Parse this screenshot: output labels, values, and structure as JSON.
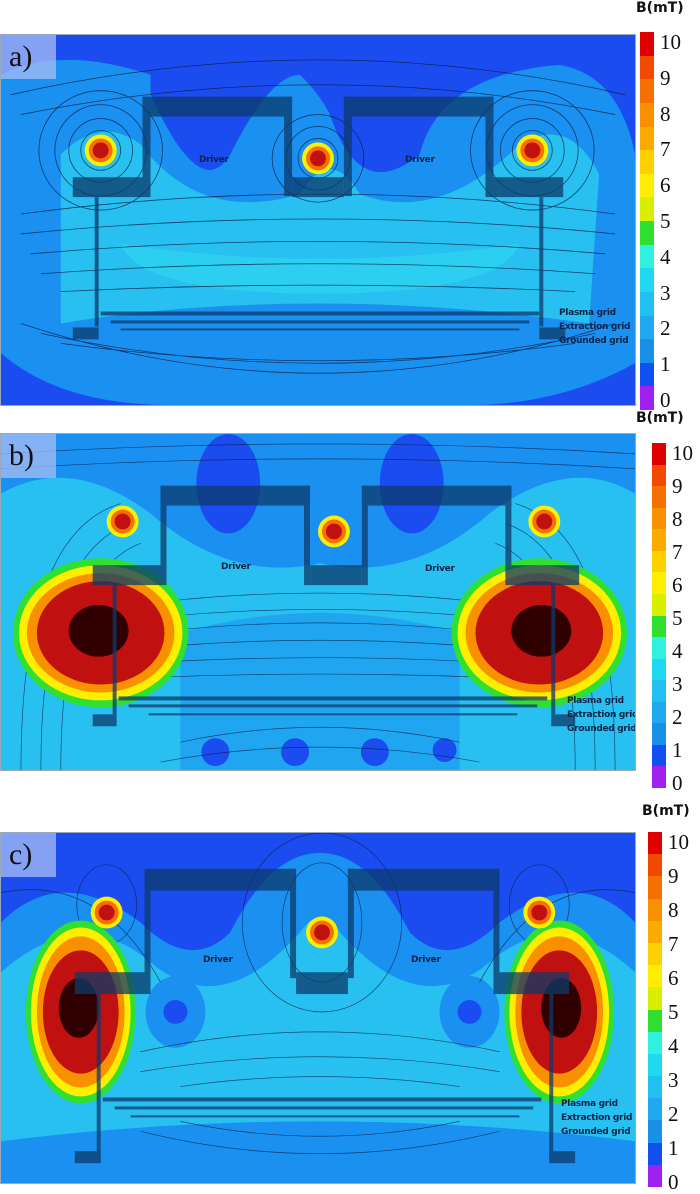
{
  "figure": {
    "panels": [
      {
        "id": "a",
        "label": "a)",
        "driver_left": "Driver",
        "driver_right": "Driver",
        "grid_labels": [
          "Plasma grid",
          "Extraction grid",
          "Grounded grid"
        ],
        "colorbar": {
          "unit": "B(mT)",
          "ticks": [
            "10",
            "9",
            "8",
            "7",
            "6",
            "5",
            "4",
            "3",
            "2",
            "1",
            "0"
          ]
        }
      },
      {
        "id": "b",
        "label": "b)",
        "driver_left": "Driver",
        "driver_right": "Driver",
        "grid_labels": [
          "Plasma grid",
          "Extraction grid",
          "Grounded grid"
        ],
        "colorbar": {
          "unit": "B(mT)",
          "ticks": [
            "10",
            "9",
            "8",
            "7",
            "6",
            "5",
            "4",
            "3",
            "2",
            "1",
            "0"
          ]
        }
      },
      {
        "id": "c",
        "label": "c)",
        "driver_left": "Driver",
        "driver_right": "Driver",
        "grid_labels": [
          "Plasma grid",
          "Extraction grid",
          "Grounded grid"
        ],
        "colorbar": {
          "unit": "B(mT)",
          "ticks": [
            "10",
            "9",
            "8",
            "7",
            "6",
            "5",
            "4",
            "3",
            "2",
            "1",
            "0"
          ]
        }
      }
    ],
    "colormap": [
      "#e00000",
      "#f04a00",
      "#f57000",
      "#f89000",
      "#fbaa00",
      "#ffd000",
      "#ffee00",
      "#d8f000",
      "#30e030",
      "#30f0e0",
      "#20d8f0",
      "#20c0f0",
      "#20a8f0",
      "#1890e8",
      "#1050f0",
      "#a020f0"
    ],
    "colors": {
      "background_low": "#1a4cf0",
      "background_mid": "#1a90f0",
      "background_light": "#28c0f0",
      "structure": "#0c3a6a",
      "hot": "#c01010"
    }
  }
}
